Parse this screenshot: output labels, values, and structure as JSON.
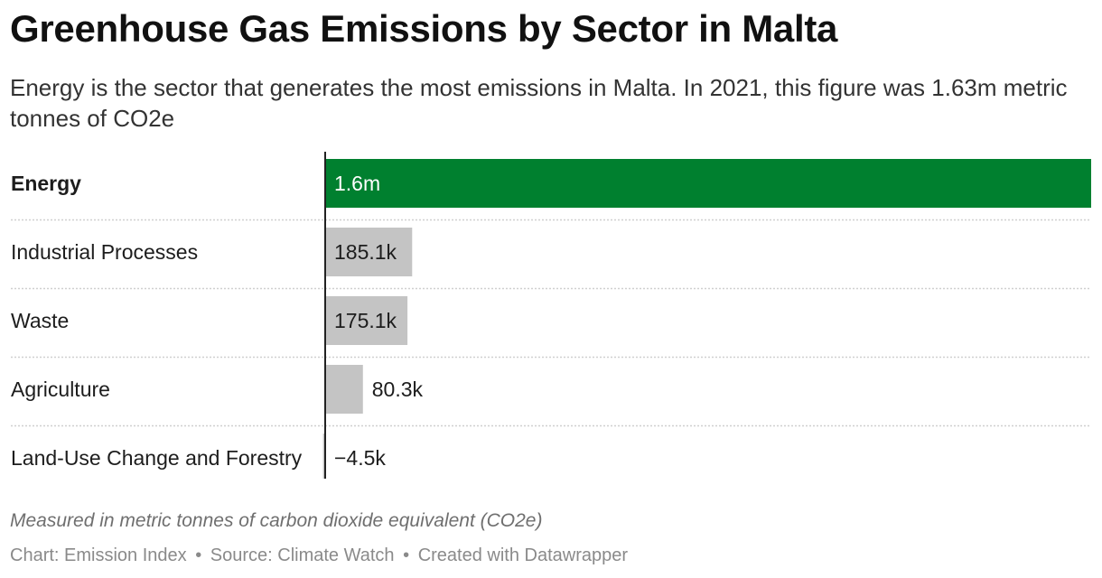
{
  "header": {
    "title": "Greenhouse Gas Emissions by Sector in Malta",
    "subtitle": "Energy is the sector that generates the most emissions in Malta. In 2021, this figure was 1.63m metric tonnes of CO2e"
  },
  "notes": "Measured in metric tonnes of carbon dioxide equivalent (CO2e)",
  "footer": {
    "chart_credit": "Chart: Emission Index",
    "source": "Source: Climate Watch",
    "created": "Created with Datawrapper",
    "separator": "•"
  },
  "colors": {
    "highlight": "#00802f",
    "default_bar": "#c4c4c4",
    "axis": "#222222",
    "gridline": "#d0d0d0"
  },
  "chart_data": {
    "type": "bar",
    "orientation": "horizontal",
    "categories": [
      "Energy",
      "Industrial Processes",
      "Waste",
      "Agriculture",
      "Land-Use Change and Forestry"
    ],
    "values": [
      1630000,
      185100,
      175100,
      80300,
      -4500
    ],
    "value_labels": [
      "1.6m",
      "185.1k",
      "175.1k",
      "80.3k",
      "−4.5k"
    ],
    "highlighted": [
      "Energy"
    ],
    "xlim": [
      -4500,
      1630000
    ],
    "grid": false,
    "legend": "none"
  }
}
